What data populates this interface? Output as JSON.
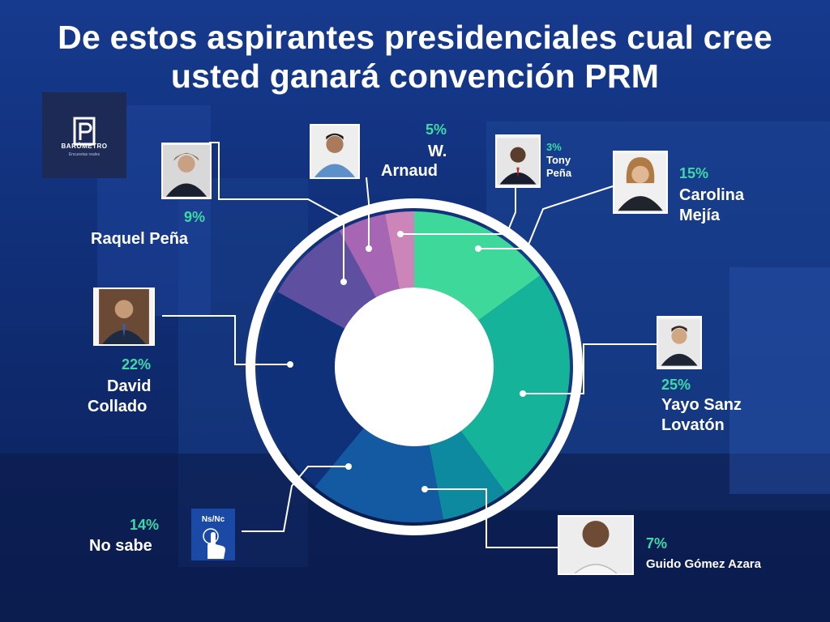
{
  "title": "De estos aspirantes presidenciales cual cree usted  ganará convención PRM",
  "logo": {
    "name": "BARÓMETRO",
    "tagline": "Encuestas reales"
  },
  "colors": {
    "background": "#0f2a6b",
    "label_percent": "#3fd8a6",
    "ring": "#ffffff"
  },
  "ns_icon_label": "Ns/Nc",
  "chart_data": {
    "type": "pie",
    "variant": "donut",
    "unit": "%",
    "slices": [
      {
        "label": "Carolina Mejía",
        "value": 15,
        "value_label": "15%",
        "color": "#3fd89b"
      },
      {
        "label": "Yayo Sanz Lovatón",
        "value": 25,
        "value_label": "25%",
        "color": "#14b39a"
      },
      {
        "label": "Guido Gómez Azara",
        "value": 7,
        "value_label": "7%",
        "color": "#0e8aa0"
      },
      {
        "label": "No sabe",
        "value": 14,
        "value_label": "14%",
        "color": "#135aa3"
      },
      {
        "label": "David Collado",
        "value": 22,
        "value_label": "22%",
        "color": "#0f3179"
      },
      {
        "label": "Raquel Peña",
        "value": 9,
        "value_label": "9%",
        "color": "#5f4fa0"
      },
      {
        "label": "W. Arnaud",
        "value": 5,
        "value_label": "5%",
        "color": "#a766b4"
      },
      {
        "label": "Tony Peña",
        "value": 3,
        "value_label": "3%",
        "color": "#cc85b8"
      }
    ],
    "labels": {
      "carolina": {
        "pct": "15%",
        "name_l1": "Carolina",
        "name_l2": "Mejía"
      },
      "yayo": {
        "pct": "25%",
        "name_l1": "Yayo Sanz",
        "name_l2": "Lovatón"
      },
      "guido": {
        "pct": "7%",
        "name_l1": "Guido Gómez Azara"
      },
      "nosabe": {
        "pct": "14%",
        "name_l1": "No sabe"
      },
      "collado": {
        "pct": "22%",
        "name_l1": "David",
        "name_l2": "Collado"
      },
      "raquel": {
        "pct": "9%",
        "name_l1": "Raquel Peña"
      },
      "arnaud": {
        "pct": "5%",
        "name_l1": "W.",
        "name_l2": "Arnaud"
      },
      "tony": {
        "pct": "3%",
        "name_l1": "Tony",
        "name_l2": "Peña"
      }
    }
  }
}
